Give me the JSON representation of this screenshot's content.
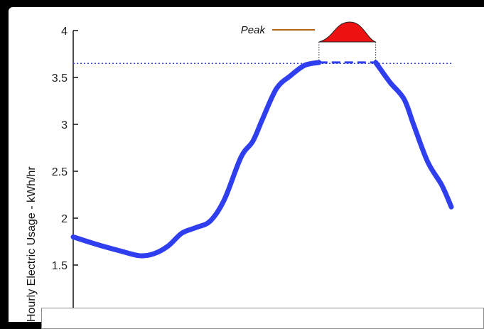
{
  "chart_data": {
    "type": "line",
    "title": "",
    "ylabel": "Hourly Electric Usage - kWh/hr",
    "xlabel": "",
    "ylim": [
      1.0,
      4.0
    ],
    "yticks": [
      1.5,
      2,
      2.5,
      3,
      3.5,
      4
    ],
    "ytick_labels": [
      "1.5",
      "2",
      "2.5",
      "3",
      "3.5",
      "4"
    ],
    "grid": false,
    "series": [
      {
        "color": "#2f3ff0",
        "points": [
          [
            0.0,
            1.8
          ],
          [
            0.05,
            1.72
          ],
          [
            0.1,
            1.65
          ],
          [
            0.14,
            1.6
          ],
          [
            0.17,
            1.62
          ],
          [
            0.2,
            1.7
          ],
          [
            0.23,
            1.84
          ],
          [
            0.26,
            1.9
          ],
          [
            0.29,
            1.97
          ],
          [
            0.32,
            2.2
          ],
          [
            0.355,
            2.65
          ],
          [
            0.38,
            2.82
          ],
          [
            0.4,
            3.05
          ],
          [
            0.43,
            3.38
          ],
          [
            0.46,
            3.52
          ],
          [
            0.49,
            3.63
          ],
          [
            0.52,
            3.66
          ],
          [
            0.56,
            3.66
          ],
          [
            0.6,
            3.66
          ],
          [
            0.64,
            3.66
          ],
          [
            0.67,
            3.45
          ],
          [
            0.7,
            3.27
          ],
          [
            0.72,
            3.0
          ],
          [
            0.75,
            2.6
          ],
          [
            0.78,
            2.35
          ],
          [
            0.8,
            2.12
          ]
        ],
        "dashed_x_range": [
          0.52,
          0.64
        ]
      }
    ],
    "reference_line": {
      "y": 3.65,
      "style": "dotted",
      "color": "#3344dd"
    },
    "annotation": {
      "label": "Peak",
      "shape": "bell",
      "fill": "#ee1111",
      "leader_color": "#b5651d",
      "x_range": [
        0.52,
        0.64
      ]
    }
  }
}
